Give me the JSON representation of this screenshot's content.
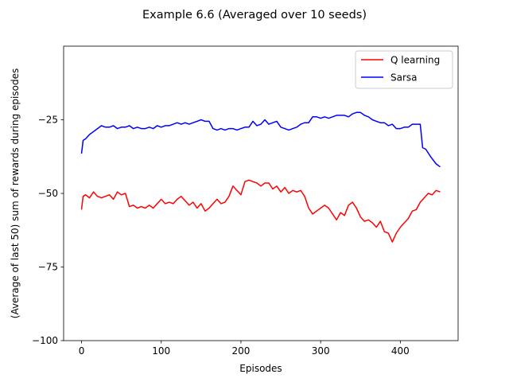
{
  "chart_data": {
    "type": "line",
    "title": "Example 6.6 (Averaged over 10 seeds)",
    "xlabel": "Episodes",
    "ylabel": "(Average of last 50) sum of rewards during episodes",
    "xlim": [
      -22.5,
      472.5
    ],
    "ylim": [
      -100,
      0
    ],
    "xticks": [
      0,
      100,
      200,
      300,
      400
    ],
    "yticks": [
      -100,
      -75,
      -50,
      -25
    ],
    "grid": false,
    "legend_position": "top-right",
    "colors": {
      "Q learning": "#ff0000",
      "Sarsa": "#0000ff"
    },
    "series": [
      {
        "name": "Q learning",
        "color": "#ff0000",
        "x": [
          0,
          2,
          5,
          10,
          15,
          20,
          25,
          30,
          35,
          40,
          45,
          50,
          55,
          60,
          65,
          70,
          75,
          80,
          85,
          90,
          95,
          100,
          105,
          110,
          115,
          120,
          125,
          130,
          135,
          140,
          145,
          150,
          155,
          160,
          165,
          170,
          175,
          180,
          185,
          190,
          195,
          200,
          205,
          210,
          215,
          220,
          225,
          230,
          235,
          240,
          245,
          250,
          255,
          260,
          265,
          270,
          275,
          280,
          285,
          290,
          295,
          300,
          305,
          310,
          315,
          320,
          325,
          330,
          335,
          340,
          345,
          350,
          355,
          360,
          365,
          370,
          375,
          380,
          385,
          390,
          395,
          400,
          405,
          410,
          415,
          420,
          425,
          430,
          435,
          440,
          445,
          450
        ],
        "y": [
          -55.5,
          -51,
          -50.5,
          -51.5,
          -49.5,
          -51,
          -51.5,
          -51,
          -50.5,
          -52,
          -49.5,
          -50.5,
          -50,
          -54.5,
          -54,
          -55,
          -54.5,
          -55,
          -54,
          -55,
          -53.5,
          -52,
          -53.5,
          -53,
          -53.5,
          -52,
          -51,
          -52.5,
          -54,
          -53,
          -55,
          -53.5,
          -56,
          -55,
          -53.5,
          -52,
          -53.5,
          -53,
          -51,
          -47.5,
          -49,
          -50.5,
          -46,
          -45.5,
          -46,
          -46.5,
          -47.5,
          -46.5,
          -46.5,
          -48.5,
          -47.5,
          -49.5,
          -48,
          -50,
          -49,
          -49.5,
          -49,
          -51,
          -55,
          -57,
          -56,
          -55,
          -54,
          -55,
          -57,
          -59,
          -56.5,
          -57.5,
          -54,
          -53,
          -55,
          -58,
          -59.5,
          -59,
          -60,
          -61.5,
          -59.5,
          -63,
          -63.5,
          -66.5,
          -63.5,
          -61.5,
          -60,
          -58.5,
          -56,
          -55.5,
          -53,
          -51.5,
          -50,
          -50.5,
          -49,
          -49.5
        ]
      },
      {
        "name": "Sarsa",
        "color": "#0000ff",
        "x": [
          0,
          2,
          5,
          10,
          15,
          20,
          25,
          30,
          35,
          40,
          45,
          50,
          55,
          60,
          65,
          70,
          75,
          80,
          85,
          90,
          95,
          100,
          105,
          110,
          115,
          120,
          125,
          130,
          135,
          140,
          145,
          150,
          155,
          160,
          165,
          170,
          175,
          180,
          185,
          190,
          195,
          200,
          205,
          210,
          215,
          220,
          225,
          230,
          235,
          240,
          245,
          250,
          255,
          260,
          265,
          270,
          275,
          280,
          285,
          290,
          295,
          300,
          305,
          310,
          315,
          320,
          325,
          330,
          335,
          340,
          345,
          350,
          355,
          360,
          365,
          370,
          375,
          380,
          385,
          390,
          395,
          400,
          405,
          410,
          415,
          420,
          425,
          428,
          432,
          438,
          445,
          450
        ],
        "y": [
          -36.5,
          -32,
          -31.5,
          -30,
          -29,
          -28,
          -27,
          -27.5,
          -27.5,
          -27,
          -28,
          -27.5,
          -27.5,
          -27,
          -28,
          -27.5,
          -28,
          -28,
          -27.5,
          -28,
          -27,
          -27.5,
          -27,
          -27,
          -26.5,
          -26,
          -26.5,
          -26,
          -26.5,
          -26,
          -25.5,
          -25,
          -25.5,
          -25.5,
          -28,
          -28.5,
          -28,
          -28.5,
          -28,
          -28,
          -28.5,
          -28,
          -27.5,
          -27.5,
          -25.5,
          -27,
          -26.5,
          -25,
          -26.5,
          -26,
          -25.5,
          -27.5,
          -28,
          -28.5,
          -28,
          -27.5,
          -26.5,
          -26,
          -26,
          -24,
          -24,
          -24.5,
          -24,
          -24.5,
          -24,
          -23.5,
          -23.5,
          -23.5,
          -24,
          -23,
          -22.5,
          -22.5,
          -23.5,
          -24,
          -25,
          -25.5,
          -26,
          -26,
          -27,
          -26.5,
          -28,
          -28,
          -27.5,
          -27.5,
          -26.5,
          -26.5,
          -26.5,
          -34.5,
          -35,
          -37.5,
          -40,
          -41
        ]
      }
    ]
  }
}
